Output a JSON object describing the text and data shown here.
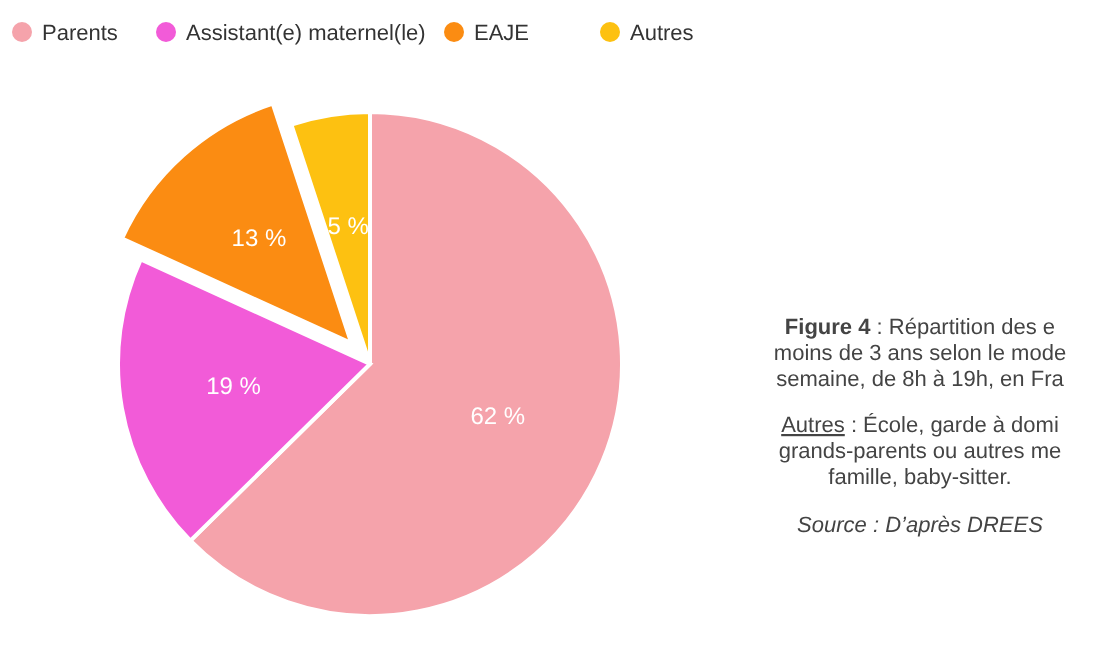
{
  "chart_data": {
    "type": "pie",
    "categories": [
      "Parents",
      "Assistant(e) maternel(le)",
      "EAJE",
      "Autres"
    ],
    "values": [
      62,
      19,
      13,
      5
    ],
    "colors": [
      "#f5a3ab",
      "#f25bd8",
      "#fb8c12",
      "#fdc111"
    ],
    "value_labels": [
      "62 %",
      "19 %",
      "13 %",
      "5 %"
    ],
    "legend": "top left",
    "annotations": [
      "Figure 4 : Répartition des e",
      "moins de 3 ans selon le mode",
      "semaine, de 8h à 19h, en Fra",
      "Autres : École, garde à domi",
      "grands-parents ou autres me",
      "famille, baby-sitter.",
      "Source : D’après DREES"
    ]
  }
}
